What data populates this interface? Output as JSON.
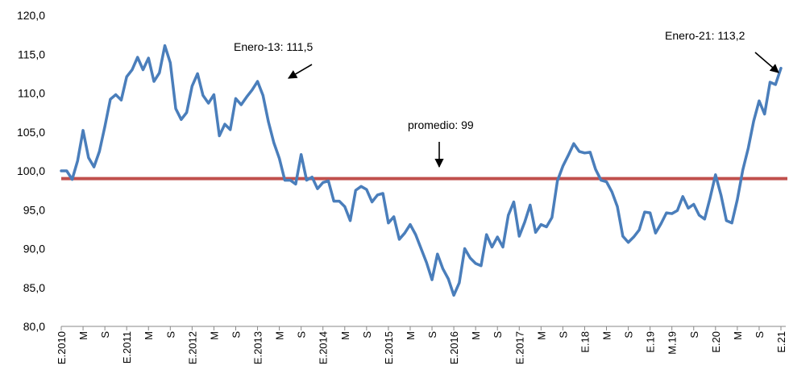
{
  "chart_data": {
    "type": "line",
    "title": "",
    "xlabel": "",
    "ylabel": "",
    "ylim": [
      80,
      120
    ],
    "yticks": [
      "80,0",
      "85,0",
      "90,0",
      "95,0",
      "100,0",
      "105,0",
      "110,0",
      "115,0",
      "120,0"
    ],
    "ytick_values": [
      80,
      85,
      90,
      95,
      100,
      105,
      110,
      115,
      120
    ],
    "x_start": "2010-01",
    "x_end": "2021-01",
    "xticks": [
      {
        "month": 0,
        "label": "E.2010"
      },
      {
        "month": 4,
        "label": "M"
      },
      {
        "month": 8,
        "label": "S"
      },
      {
        "month": 12,
        "label": "E.2011"
      },
      {
        "month": 16,
        "label": "M"
      },
      {
        "month": 20,
        "label": "S"
      },
      {
        "month": 24,
        "label": "E.2012"
      },
      {
        "month": 28,
        "label": "M"
      },
      {
        "month": 32,
        "label": "S"
      },
      {
        "month": 36,
        "label": "E.2013"
      },
      {
        "month": 40,
        "label": "M"
      },
      {
        "month": 44,
        "label": "S"
      },
      {
        "month": 48,
        "label": "E.2014"
      },
      {
        "month": 52,
        "label": "M"
      },
      {
        "month": 56,
        "label": "S"
      },
      {
        "month": 60,
        "label": "E.2015"
      },
      {
        "month": 64,
        "label": "M"
      },
      {
        "month": 68,
        "label": "S"
      },
      {
        "month": 72,
        "label": "E.2016"
      },
      {
        "month": 76,
        "label": "M"
      },
      {
        "month": 80,
        "label": "S"
      },
      {
        "month": 84,
        "label": "E.2017"
      },
      {
        "month": 88,
        "label": "M"
      },
      {
        "month": 92,
        "label": "S"
      },
      {
        "month": 96,
        "label": "E.18"
      },
      {
        "month": 100,
        "label": "M"
      },
      {
        "month": 104,
        "label": "S"
      },
      {
        "month": 108,
        "label": "E.19"
      },
      {
        "month": 112,
        "label": "M.19"
      },
      {
        "month": 116,
        "label": "S"
      },
      {
        "month": 120,
        "label": "E.20"
      },
      {
        "month": 124,
        "label": "M"
      },
      {
        "month": 128,
        "label": "S"
      },
      {
        "month": 132,
        "label": "E.21"
      }
    ],
    "series": [
      {
        "color": "#4a7ebb",
        "values": [
          100.0,
          100.0,
          98.9,
          101.3,
          105.2,
          101.7,
          100.5,
          102.5,
          105.7,
          109.2,
          109.8,
          109.1,
          112.1,
          113.0,
          114.6,
          113.0,
          114.5,
          111.5,
          112.6,
          116.1,
          113.9,
          108.0,
          106.6,
          107.5,
          110.9,
          112.5,
          109.7,
          108.7,
          109.8,
          104.5,
          106.0,
          105.3,
          109.3,
          108.5,
          109.5,
          110.4,
          111.5,
          109.7,
          106.3,
          103.6,
          101.6,
          98.8,
          98.8,
          98.3,
          102.1,
          98.8,
          99.2,
          97.7,
          98.5,
          98.7,
          96.1,
          96.1,
          95.4,
          93.6,
          97.5,
          98.0,
          97.6,
          96.0,
          96.9,
          97.1,
          93.3,
          94.1,
          91.2,
          92.0,
          93.1,
          91.8,
          90.0,
          88.2,
          86.0,
          89.3,
          87.4,
          86.1,
          84.0,
          85.6,
          90.0,
          88.8,
          88.1,
          87.8,
          91.8,
          90.2,
          91.5,
          90.2,
          94.3,
          96.0,
          91.6,
          93.4,
          95.6,
          92.1,
          93.1,
          92.8,
          94.0,
          98.7,
          100.6,
          102.0,
          103.5,
          102.5,
          102.3,
          102.4,
          100.2,
          98.8,
          98.6,
          97.3,
          95.4,
          91.6,
          90.8,
          91.5,
          92.4,
          94.7,
          94.6,
          92.0,
          93.2,
          94.6,
          94.5,
          94.9,
          96.7,
          95.2,
          95.7,
          94.3,
          93.8,
          96.5,
          99.5,
          96.9,
          93.6,
          93.3,
          96.3,
          100.1,
          102.9,
          106.4,
          109.0,
          107.3,
          111.4,
          111.1,
          113.2
        ]
      },
      {
        "color": "#c0504d",
        "values": [
          99,
          99
        ]
      }
    ],
    "average": 99,
    "annotations": [
      {
        "text": "Enero-13: 111,5",
        "month": 36,
        "value": 111.5
      },
      {
        "text": "promedio: 99",
        "month": 71,
        "value": 99
      },
      {
        "text": "Enero-21: 113,2",
        "month": 132,
        "value": 113.2
      }
    ]
  }
}
